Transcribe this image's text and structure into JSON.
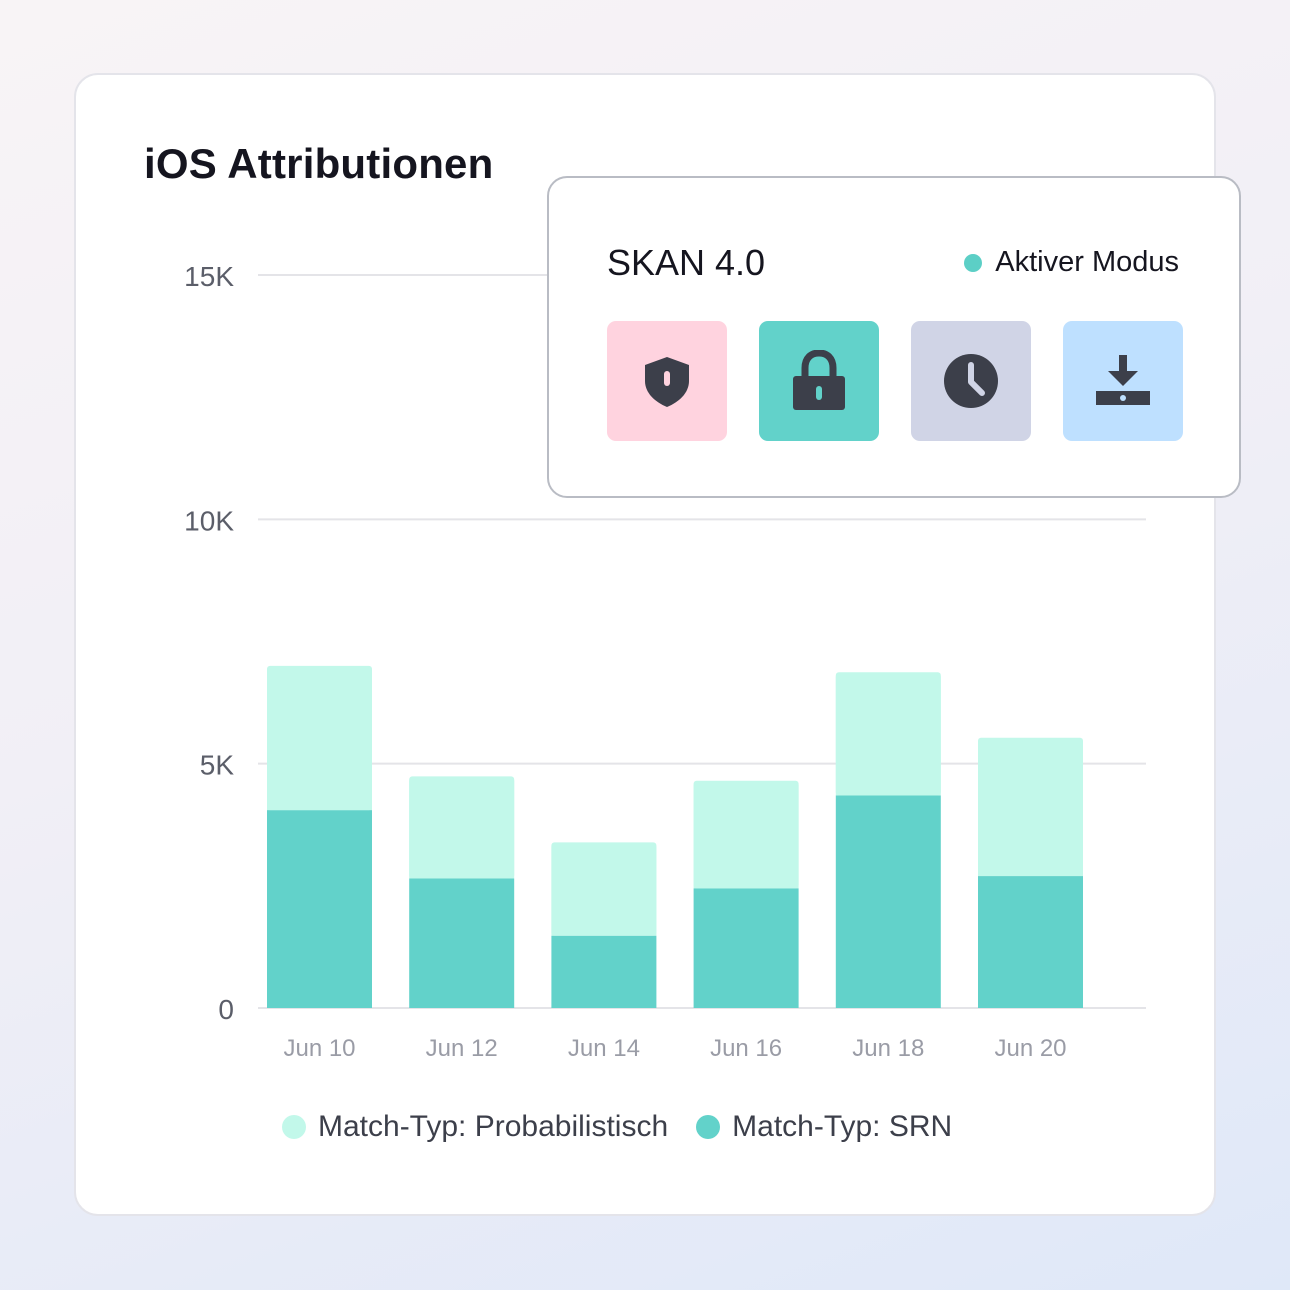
{
  "card": {
    "title": "iOS Attributionen"
  },
  "chart_data": {
    "type": "bar",
    "stacked": true,
    "categories": [
      "Jun 10",
      "Jun 12",
      "Jun 14",
      "Jun 16",
      "Jun 18",
      "Jun 20"
    ],
    "series": [
      {
        "name": "Match-Typ: SRN",
        "values": [
          4050,
          2650,
          1480,
          2450,
          4350,
          2700
        ],
        "color": "#62d2ca"
      },
      {
        "name": "Match-Typ: Probabilistisch",
        "values": [
          2950,
          2090,
          1910,
          2200,
          2520,
          2830
        ],
        "color": "#c2f8ea"
      }
    ],
    "yticks": [
      0,
      5000,
      10000,
      15000
    ],
    "ytick_labels": [
      "0",
      "5K",
      "10K",
      "15K"
    ],
    "ylim": [
      0,
      15000
    ],
    "grid": true,
    "legend_position": "bottom"
  },
  "legend": [
    {
      "label": "Match-Typ: Probabilistisch",
      "color": "#c2f8ea"
    },
    {
      "label": "Match-Typ: SRN",
      "color": "#62d2ca"
    }
  ],
  "popup": {
    "title": "SKAN 4.0",
    "status_label": "Aktiver Modus",
    "status_color": "#5ccfc6",
    "tiles": [
      {
        "icon": "shield-icon",
        "bg": "#ffd3df"
      },
      {
        "icon": "lock-icon",
        "bg": "#62d2ca"
      },
      {
        "icon": "clock-icon",
        "bg": "#d0d4e6"
      },
      {
        "icon": "download-icon",
        "bg": "#bee0ff"
      }
    ]
  }
}
